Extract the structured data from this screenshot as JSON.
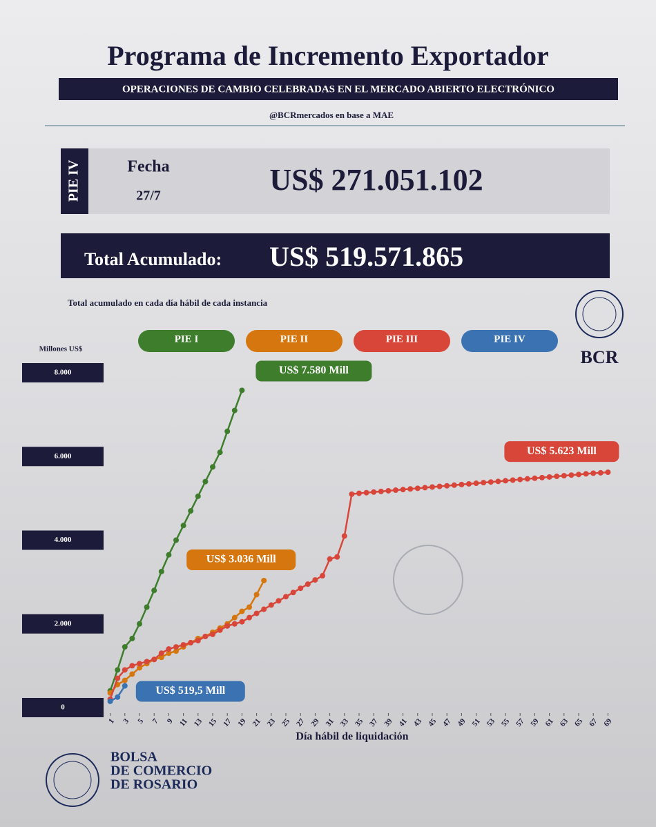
{
  "header": {
    "title": "Programa de Incremento Exportador",
    "banner": "OPERACIONES DE CAMBIO CELEBRADAS EN EL MERCADO ABIERTO ELECTRÓNICO",
    "source": "@BCRmercados en base a MAE"
  },
  "summary": {
    "instance": "PIE IV",
    "date_label": "Fecha",
    "date": "27/7",
    "amount": "US$ 271.051.102",
    "total_label": "Total Acumulado:",
    "total_amount": "US$ 519.571.865"
  },
  "logo": {
    "text": "BCR"
  },
  "footer": {
    "lines": [
      "BOLSA",
      "DE COMERCIO",
      "DE ROSARIO"
    ]
  },
  "chart_data": {
    "type": "line",
    "title": "Total  acumulado en cada día hábil de cada instancia",
    "y_label": "Millones US$",
    "x_label": "Día hábil de liquidación",
    "xlim": [
      0,
      70
    ],
    "xticks": [
      1,
      3,
      5,
      7,
      9,
      11,
      13,
      15,
      17,
      19,
      21,
      23,
      25,
      27,
      29,
      31,
      33,
      35,
      37,
      39,
      41,
      43,
      45,
      47,
      49,
      51,
      53,
      55,
      57,
      59,
      61,
      63,
      65,
      67,
      69
    ],
    "ylim": [
      0,
      8000
    ],
    "yticks": [
      {
        "value": 0,
        "label": "0"
      },
      {
        "value": 2000,
        "label": "2.000"
      },
      {
        "value": 4000,
        "label": "4.000"
      },
      {
        "value": 6000,
        "label": "6.000"
      },
      {
        "value": 8000,
        "label": "8.000"
      }
    ],
    "series": [
      {
        "name": "PIE I",
        "color": "#3d7d2c",
        "label": "US$ 7.580 Mill",
        "x": [
          1,
          2,
          3,
          4,
          5,
          6,
          7,
          8,
          9,
          10,
          11,
          12,
          13,
          14,
          15,
          16,
          17,
          18,
          19
        ],
        "values": [
          400,
          900,
          1450,
          1650,
          2000,
          2400,
          2800,
          3250,
          3650,
          4000,
          4350,
          4700,
          5050,
          5400,
          5750,
          6100,
          6600,
          7100,
          7580
        ]
      },
      {
        "name": "PIE II",
        "color": "#d5760e",
        "label": "US$ 3.036 Mill",
        "x": [
          1,
          2,
          3,
          4,
          5,
          6,
          7,
          8,
          9,
          10,
          11,
          12,
          13,
          14,
          15,
          16,
          17,
          18,
          19,
          20,
          21,
          22
        ],
        "values": [
          350,
          550,
          650,
          800,
          950,
          1050,
          1150,
          1200,
          1300,
          1350,
          1450,
          1550,
          1650,
          1700,
          1800,
          1900,
          2000,
          2150,
          2300,
          2400,
          2700,
          3036
        ]
      },
      {
        "name": "PIE III",
        "color": "#d8463a",
        "label": "US$ 5.623 Mill",
        "x": [
          1,
          2,
          3,
          4,
          5,
          6,
          7,
          8,
          9,
          10,
          11,
          12,
          13,
          14,
          15,
          16,
          17,
          18,
          19,
          20,
          21,
          22,
          23,
          24,
          25,
          26,
          27,
          28,
          29,
          30,
          31,
          32,
          33,
          34,
          35,
          36,
          37,
          38,
          39,
          40,
          41,
          42,
          43,
          44,
          45,
          46,
          47,
          48,
          49,
          50,
          51,
          52,
          53,
          54,
          55,
          56,
          57,
          58,
          59,
          60,
          61,
          62,
          63,
          64,
          65,
          66,
          67,
          68,
          69
        ],
        "values": [
          200,
          700,
          900,
          1000,
          1050,
          1100,
          1150,
          1300,
          1400,
          1450,
          1500,
          1550,
          1600,
          1700,
          1750,
          1850,
          1950,
          2000,
          2050,
          2150,
          2250,
          2350,
          2450,
          2550,
          2650,
          2750,
          2850,
          2950,
          3050,
          3150,
          3550,
          3600,
          4100,
          5100,
          5120,
          5135,
          5150,
          5165,
          5180,
          5195,
          5210,
          5225,
          5240,
          5255,
          5270,
          5285,
          5300,
          5315,
          5330,
          5345,
          5360,
          5375,
          5390,
          5405,
          5420,
          5435,
          5450,
          5465,
          5480,
          5495,
          5510,
          5525,
          5540,
          5555,
          5570,
          5585,
          5600,
          5610,
          5623
        ]
      },
      {
        "name": "PIE IV",
        "color": "#3b73b2",
        "label": "US$ 519,5 Mill",
        "x": [
          1,
          2,
          3
        ],
        "values": [
          150,
          250,
          519.5
        ]
      }
    ]
  }
}
